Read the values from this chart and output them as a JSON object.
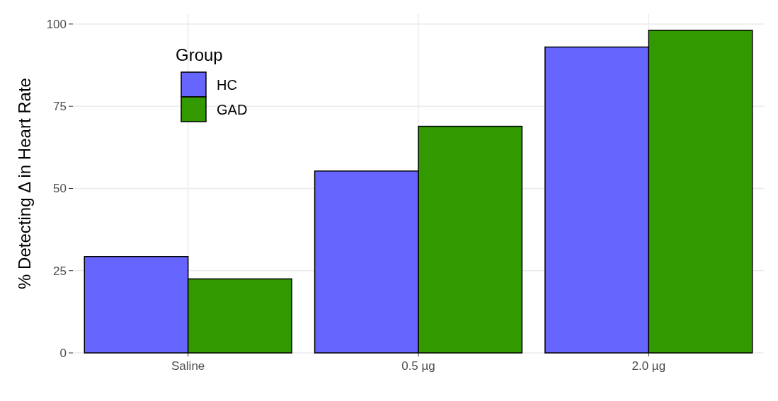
{
  "chart_data": {
    "type": "bar",
    "ylabel": "% Detecting Δ in Heart Rate",
    "legend_title": "Group",
    "categories": [
      "Saline",
      "0.5 µg",
      "2.0 µg"
    ],
    "series": [
      {
        "name": "HC",
        "color": "#6666ff",
        "values": [
          29.3,
          55.3,
          93.0
        ]
      },
      {
        "name": "GAD",
        "color": "#339900",
        "values": [
          22.5,
          68.9,
          98.1
        ]
      }
    ],
    "ylim": [
      0,
      103
    ],
    "yticks": [
      0,
      25,
      50,
      75,
      100
    ],
    "grid": true,
    "legend": "top left"
  }
}
